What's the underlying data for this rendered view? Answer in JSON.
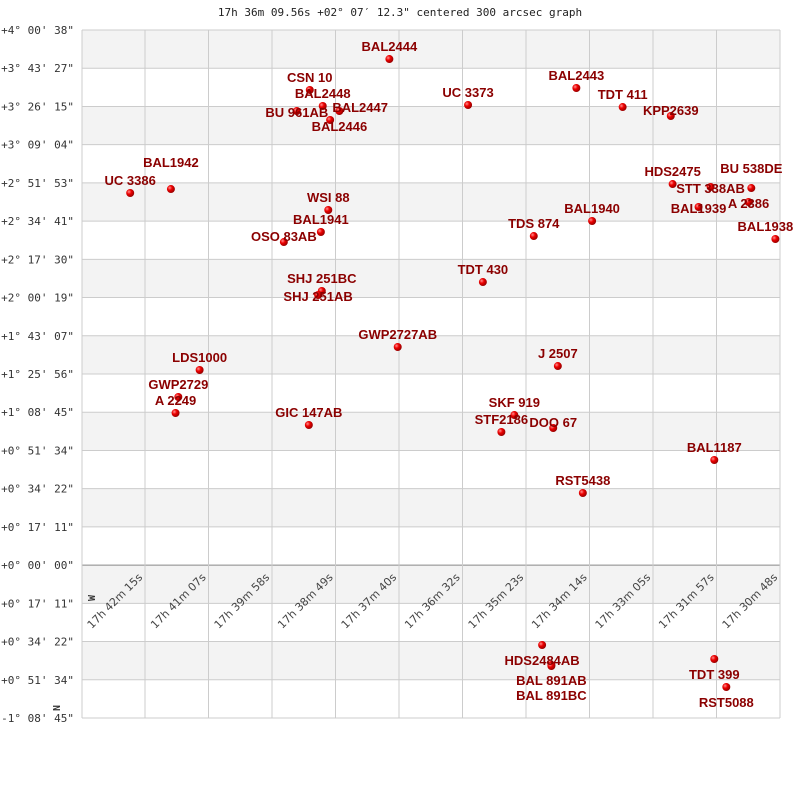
{
  "chart_data": {
    "type": "scatter",
    "title": "17h 36m 09.56s +02° 07′ 12.3\" centered 300 arcsec graph",
    "grid": true,
    "y_tick_labels": [
      "+4° 00' 38\"",
      "+3° 43' 27\"",
      "+3° 26' 15\"",
      "+3° 09' 04\"",
      "+2° 51' 53\"",
      "+2° 34' 41\"",
      "+2° 17' 30\"",
      "+2° 00' 19\"",
      "+1° 43' 07\"",
      "+1° 25' 56\"",
      "+1° 08' 45\"",
      "+0° 51' 34\"",
      "+0° 34' 22\"",
      "+0° 17' 11\"",
      "+0° 00' 00\"",
      "+0° 17' 11\"",
      "+0° 34' 22\"",
      "+0° 51' 34\"",
      "-1° 08' 45\""
    ],
    "x_tick_labels": [
      "17h 42m 15s",
      "17h 41m 07s",
      "17h 39m 58s",
      "17h 38m 49s",
      "17h 37m 40s",
      "17h 36m 32s",
      "17h 35m 23s",
      "17h 34m 14s",
      "17h 33m 05s",
      "17h 31m 57s",
      "17h 30m 48s"
    ],
    "compass": {
      "north": "N",
      "west": "W"
    },
    "colors": {
      "point": "#dd0000",
      "label": "#8b0000",
      "grid": "#cccccc",
      "band": "#f3f3f3"
    },
    "points": [
      {
        "name": "BAL2444",
        "ra": "17h 37m 51s",
        "dec": "+3° 47' 30\""
      },
      {
        "name": "CSN  10",
        "ra": "17h 39m 17s",
        "dec": "+3° 33' 35\""
      },
      {
        "name": "BAL2448",
        "ra": "17h 39m 03s",
        "dec": "+3° 26' 23\""
      },
      {
        "name": "BU  961AB",
        "ra": "17h 39m 31s",
        "dec": "+3° 24' 08\""
      },
      {
        "name": "BAL2446",
        "ra": "17h 38m 45s",
        "dec": "+3° 24' 08\""
      },
      {
        "name": "BAL2447",
        "ra": "17h 38m 55s",
        "dec": "+3° 20' 05\""
      },
      {
        "name": "UC 3386",
        "ra": "17h 42m 31s",
        "dec": "+2° 47' 16\""
      },
      {
        "name": "BAL1942",
        "ra": "17h 41m 47s",
        "dec": "+2° 49' 03\""
      },
      {
        "name": "WSI  88",
        "ra": "17h 38m 57s",
        "dec": "+2° 39' 37\""
      },
      {
        "name": "BAL1941",
        "ra": "17h 39m 05s",
        "dec": "+2° 29' 44\""
      },
      {
        "name": "OSO  83AB",
        "ra": "17h 39m 45s",
        "dec": "+2° 25' 13\""
      },
      {
        "name": "UC 3373",
        "ra": "17h 36m 26s",
        "dec": "+3° 26' 50\""
      },
      {
        "name": "BAL2443",
        "ra": "17h 34m 29s",
        "dec": "+3° 34' 28\""
      },
      {
        "name": "TDT 411",
        "ra": "17h 33m 39s",
        "dec": "+3° 25' 55\""
      },
      {
        "name": "KPP2639",
        "ra": "17h 32m 47s",
        "dec": "+3° 21' 53\""
      },
      {
        "name": "HDS2475",
        "ra": "17h 32m 45s",
        "dec": "+2° 51' 18\""
      },
      {
        "name": "STT 338AB",
        "ra": "17h 32m 04s",
        "dec": "+2° 49' 58\""
      },
      {
        "name": "BU  538DE",
        "ra": "17h 31m 20s",
        "dec": "+2° 49' 30\""
      },
      {
        "name": "BAL1939",
        "ra": "17h 32m 17s",
        "dec": "+2° 40' 58\""
      },
      {
        "name": "A  2386",
        "ra": "17h 31m 23s",
        "dec": "+2° 43' 13\""
      },
      {
        "name": "BAL1938",
        "ra": "17h 30m 54s",
        "dec": "+2° 26' 35\""
      },
      {
        "name": "TDS 874",
        "ra": "17h 35m 15s",
        "dec": "+2° 27' 55\""
      },
      {
        "name": "BAL1940",
        "ra": "17h 34m 12s",
        "dec": "+2° 34' 40\""
      },
      {
        "name": "SHJ 251BC",
        "ra": "17h 39m 04s",
        "dec": "+2° 03' 12\""
      },
      {
        "name": "SHJ 251AB",
        "ra": "17h 39m 08s",
        "dec": "+2° 01' 24\""
      },
      {
        "name": "GWP2727AB",
        "ra": "17h 37m 42s",
        "dec": "+1° 38' 01\""
      },
      {
        "name": "LDS1000",
        "ra": "17h 41m 16s",
        "dec": "+1° 27' 41\""
      },
      {
        "name": "GWP2729",
        "ra": "17h 41m 39s",
        "dec": "+1° 15' 32\""
      },
      {
        "name": "A  2249",
        "ra": "17h 41m 42s",
        "dec": "+1° 08' 21\""
      },
      {
        "name": "GIC 147AB",
        "ra": "17h 39m 18s",
        "dec": "+1° 02' 57\""
      },
      {
        "name": "TDT 430",
        "ra": "17h 36m 10s",
        "dec": "+2° 07' 14\""
      },
      {
        "name": "J  2507",
        "ra": "17h 34m 49s",
        "dec": "+1° 29' 28\""
      },
      {
        "name": "SKF 919",
        "ra": "17h 35m 36s",
        "dec": "+1° 07' 26\""
      },
      {
        "name": "STF2186",
        "ra": "17h 35m 50s",
        "dec": "+0° 59' 48\""
      },
      {
        "name": "DOO  67",
        "ra": "17h 34m 54s",
        "dec": "+1° 01' 36\""
      },
      {
        "name": "BAL1187",
        "ra": "17h 32m 00s",
        "dec": "+0° 47' 13\""
      },
      {
        "name": "RST5438",
        "ra": "17h 34m 22s",
        "dec": "+0° 32' 22\""
      },
      {
        "name": "HDS2484AB",
        "ra": "17h 35m 06s",
        "dec": "-0° 35' 58\""
      },
      {
        "name": "BAL 891AB",
        "ra": "17h 34m 56s",
        "dec": "-0° 44' 58\""
      },
      {
        "name": "BAL 891BC",
        "ra": "17h 34m 56s",
        "dec": "-0° 45' 25\""
      },
      {
        "name": "TDT 399",
        "ra": "17h 32m 00s",
        "dec": "-0° 42' 16\""
      },
      {
        "name": "RST5088",
        "ra": "17h 31m 47s",
        "dec": "-0° 54' 51\""
      }
    ]
  }
}
